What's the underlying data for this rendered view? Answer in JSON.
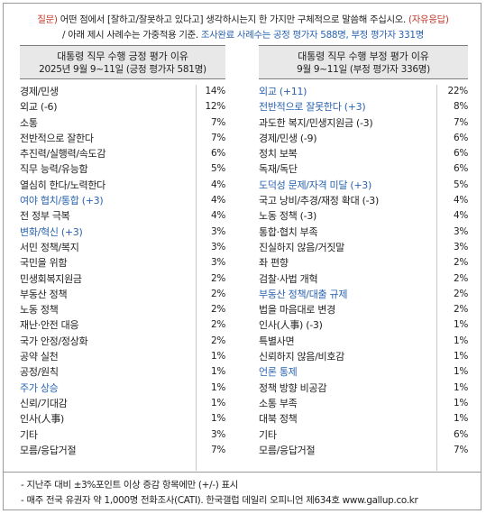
{
  "question": {
    "prefix": "질문)",
    "text": "어떤 점에서 [잘하고/잘못하고 있다고] 생각하시는지 한 가지만 구체적으로 말씀해 주십시오.",
    "tag": "(자유응답)",
    "sub_prefix": "/ 아래 제시 사례수는 가중적용 기준.",
    "sub_highlight": "조사완료 사례수는 공정 평가자 588명, 부정 평가자 331명"
  },
  "positive": {
    "title": "대통령 직무 수행 긍정 평가 이유",
    "subtitle": "2025년 9월 9~11일 (긍정 평가자 581명)",
    "rows": [
      {
        "label": "경제/민생",
        "value": "14%",
        "blue": false
      },
      {
        "label": "외교 (-6)",
        "value": "12%",
        "blue": false
      },
      {
        "label": "소통",
        "value": "7%",
        "blue": false
      },
      {
        "label": "전반적으로 잘한다",
        "value": "7%",
        "blue": false
      },
      {
        "label": "추진력/실행력/속도감",
        "value": "6%",
        "blue": false
      },
      {
        "label": "직무 능력/유능함",
        "value": "5%",
        "blue": false
      },
      {
        "label": "열심히 한다/노력한다",
        "value": "4%",
        "blue": false
      },
      {
        "label": "여야 협치/통합 (+3)",
        "value": "4%",
        "blue": true
      },
      {
        "label": "전 정부 극복",
        "value": "4%",
        "blue": false
      },
      {
        "label": "변화/혁신 (+3)",
        "value": "3%",
        "blue": true
      },
      {
        "label": "서민 정책/복지",
        "value": "3%",
        "blue": false
      },
      {
        "label": "국민을 위함",
        "value": "3%",
        "blue": false
      },
      {
        "label": "민생회복지원금",
        "value": "2%",
        "blue": false
      },
      {
        "label": "부동산 정책",
        "value": "2%",
        "blue": false
      },
      {
        "label": "노동 정책",
        "value": "2%",
        "blue": false
      },
      {
        "label": "재난·안전 대응",
        "value": "2%",
        "blue": false
      },
      {
        "label": "국가 안정/정상화",
        "value": "2%",
        "blue": false
      },
      {
        "label": "공약 실천",
        "value": "1%",
        "blue": false
      },
      {
        "label": "공정/원칙",
        "value": "1%",
        "blue": false
      },
      {
        "label": "주가 상승",
        "value": "1%",
        "blue": true
      },
      {
        "label": "신뢰/기대감",
        "value": "1%",
        "blue": false
      },
      {
        "label": "인사(人事)",
        "value": "1%",
        "blue": false
      },
      {
        "label": "기타",
        "value": "3%",
        "blue": false
      },
      {
        "label": "모름/응답거절",
        "value": "7%",
        "blue": false
      }
    ]
  },
  "negative": {
    "title": "대통령 직무 수행 부정 평가 이유",
    "subtitle": "9월 9~11일 (부정 평가자 336명)",
    "rows": [
      {
        "label": "외교 (+11)",
        "value": "22%",
        "blue": true
      },
      {
        "label": "전반적으로 잘못한다 (+3)",
        "value": "8%",
        "blue": true
      },
      {
        "label": "과도한 복지/민생지원금 (-3)",
        "value": "7%",
        "blue": false
      },
      {
        "label": "경제/민생 (-9)",
        "value": "6%",
        "blue": false
      },
      {
        "label": "정치 보복",
        "value": "6%",
        "blue": false
      },
      {
        "label": "독재/독단",
        "value": "6%",
        "blue": false
      },
      {
        "label": "도덕성 문제/자격 미달 (+3)",
        "value": "5%",
        "blue": true
      },
      {
        "label": "국고 낭비/추경/재정 확대 (-3)",
        "value": "4%",
        "blue": false
      },
      {
        "label": "노동 정책 (-3)",
        "value": "4%",
        "blue": false
      },
      {
        "label": "통합·협치 부족",
        "value": "3%",
        "blue": false
      },
      {
        "label": "진실하지 않음/거짓말",
        "value": "3%",
        "blue": false
      },
      {
        "label": "좌 편향",
        "value": "2%",
        "blue": false
      },
      {
        "label": "검찰·사법 개혁",
        "value": "2%",
        "blue": false
      },
      {
        "label": "부동산 정책/대출 규제",
        "value": "2%",
        "blue": true
      },
      {
        "label": "법을 마음대로 변경",
        "value": "2%",
        "blue": false
      },
      {
        "label": "인사(人事) (-3)",
        "value": "1%",
        "blue": false
      },
      {
        "label": "특별사면",
        "value": "1%",
        "blue": false
      },
      {
        "label": "신뢰하지 않음/비호감",
        "value": "1%",
        "blue": false
      },
      {
        "label": "언론 통제",
        "value": "1%",
        "blue": true
      },
      {
        "label": "정책 방향 비공감",
        "value": "1%",
        "blue": false
      },
      {
        "label": "소통 부족",
        "value": "1%",
        "blue": false
      },
      {
        "label": "대북 정책",
        "value": "1%",
        "blue": false
      },
      {
        "label": "기타",
        "value": "6%",
        "blue": false
      },
      {
        "label": "모름/응답거절",
        "value": "7%",
        "blue": false
      }
    ]
  },
  "notes": [
    "- 지난주 대비 ±3%포인트 이상 증감 항목에만 (+/-) 표시",
    "- 매주 전국 유권자 약 1,000명 전화조사(CATI). 한국갤럽 데일리 오피니언 제634호 www.gallup.co.kr"
  ]
}
